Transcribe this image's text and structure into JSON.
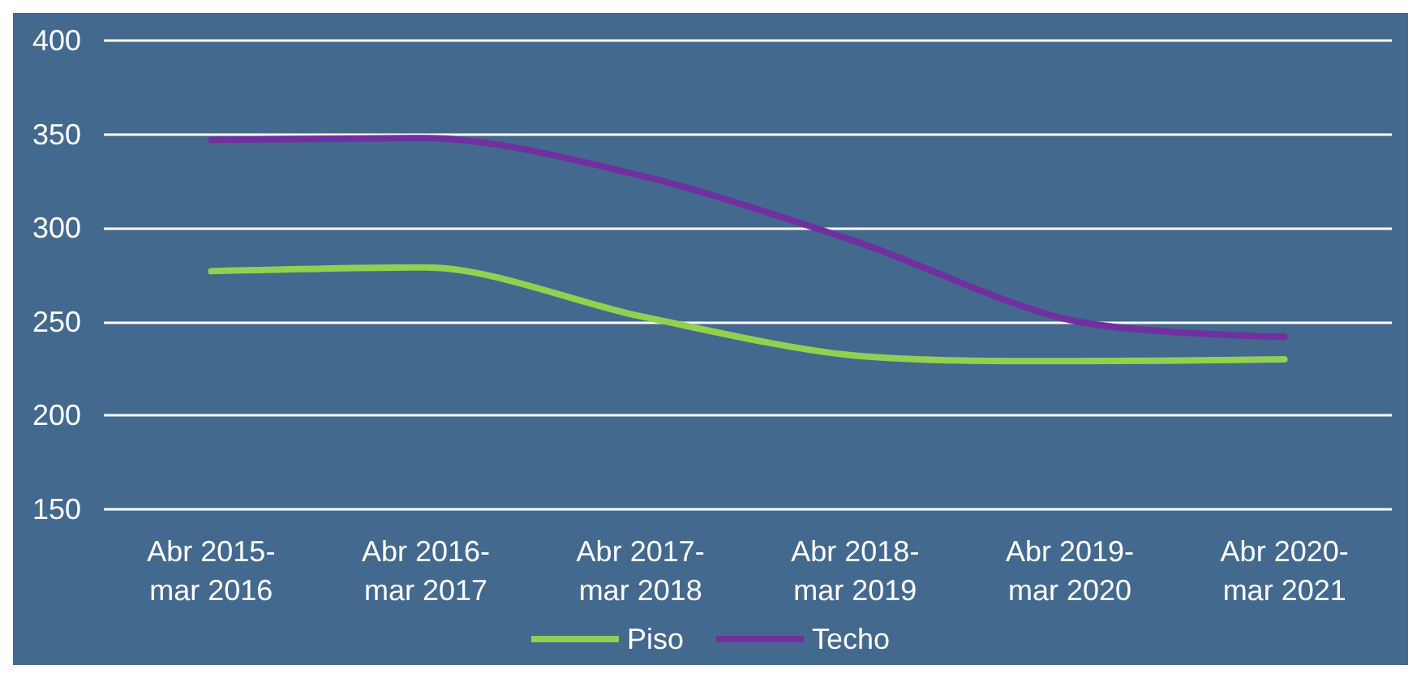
{
  "chart_data": {
    "type": "line",
    "categories": [
      "Abr 2015-\nmar 2016",
      "Abr 2016-\nmar 2017",
      "Abr 2017-\nmar 2018",
      "Abr 2018-\nmar 2019",
      "Abr 2019-\nmar 2020",
      "Abr 2020-\nmar 2021"
    ],
    "series": [
      {
        "name": "Piso",
        "color": "#92d050",
        "values": [
          277,
          279,
          253,
          232,
          229,
          230
        ]
      },
      {
        "name": "Techo",
        "color": "#7030a0",
        "values": [
          347,
          348,
          328,
          293,
          251,
          242
        ]
      }
    ],
    "ylim": [
      150,
      400
    ],
    "yticks": [
      150,
      200,
      250,
      300,
      350,
      400
    ],
    "grid": "y",
    "legend": "bottom",
    "marker": "none",
    "line_style": "solid"
  }
}
